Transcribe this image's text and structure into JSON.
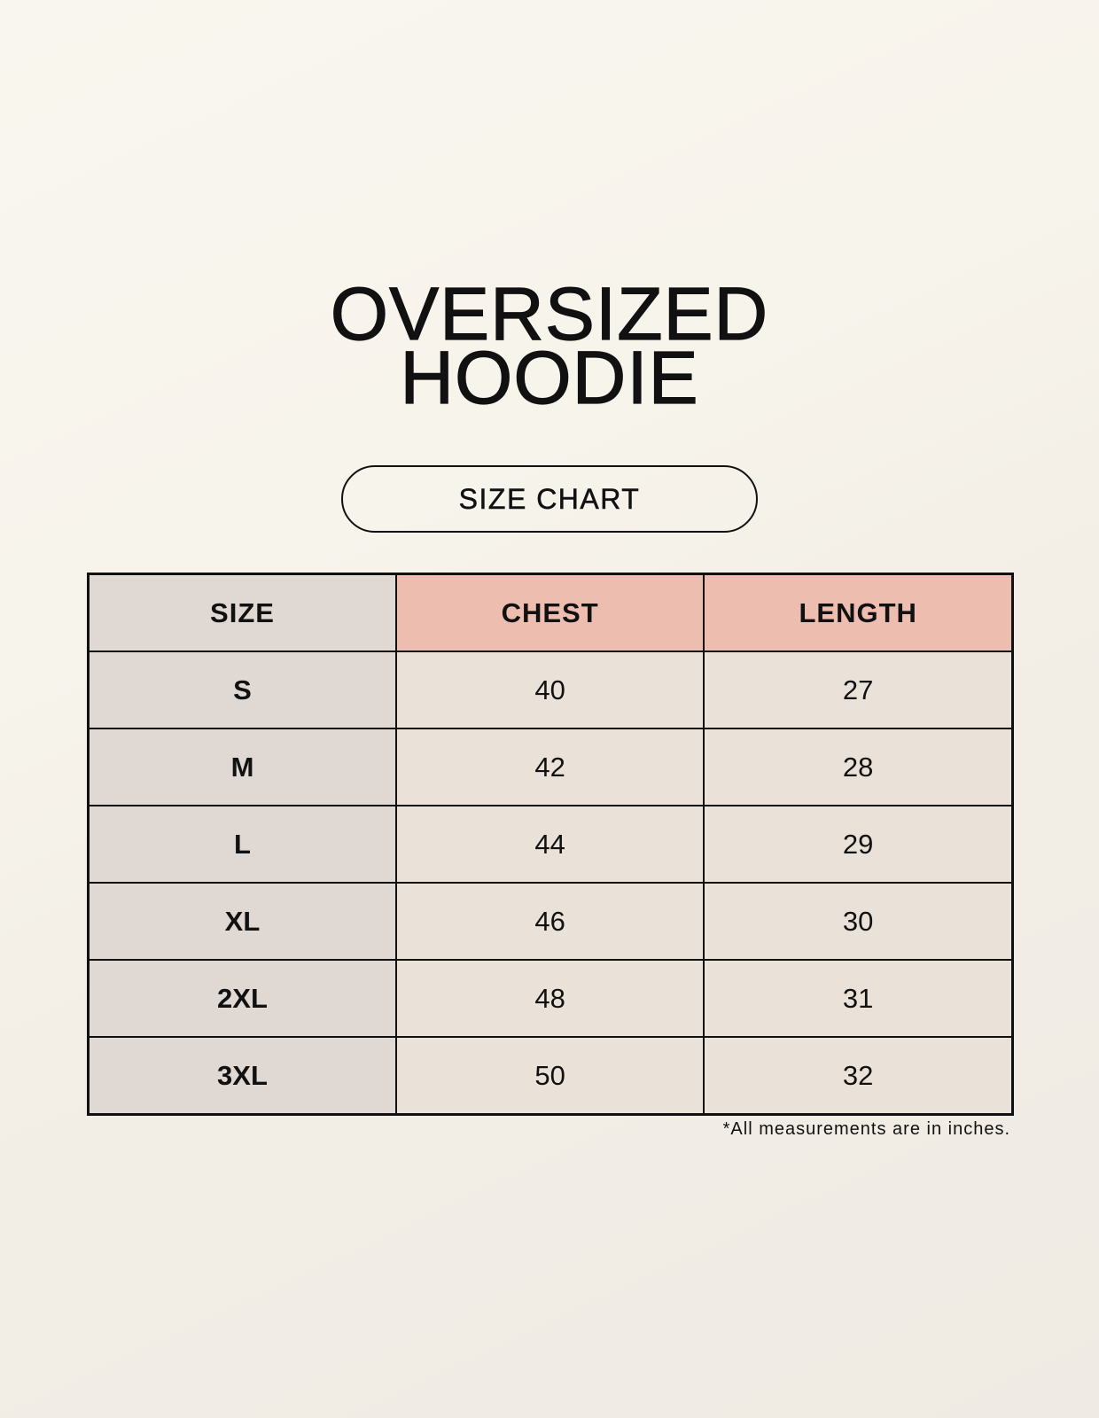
{
  "title": {
    "line1": "OVERSIZED",
    "line2": "HOODIE"
  },
  "badge": "SIZE CHART",
  "table": {
    "headers": [
      "SIZE",
      "CHEST",
      "LENGTH"
    ],
    "rows": [
      [
        "S",
        "40",
        "27"
      ],
      [
        "M",
        "42",
        "28"
      ],
      [
        "L",
        "44",
        "29"
      ],
      [
        "XL",
        "46",
        "30"
      ],
      [
        "2XL",
        "48",
        "31"
      ],
      [
        "3XL",
        "50",
        "32"
      ]
    ]
  },
  "note": "*All measurements are in inches.",
  "colors": {
    "size_column": "#e0d8d2",
    "header_accent": "#edbdb0",
    "value_cells": "#eae2d8"
  }
}
